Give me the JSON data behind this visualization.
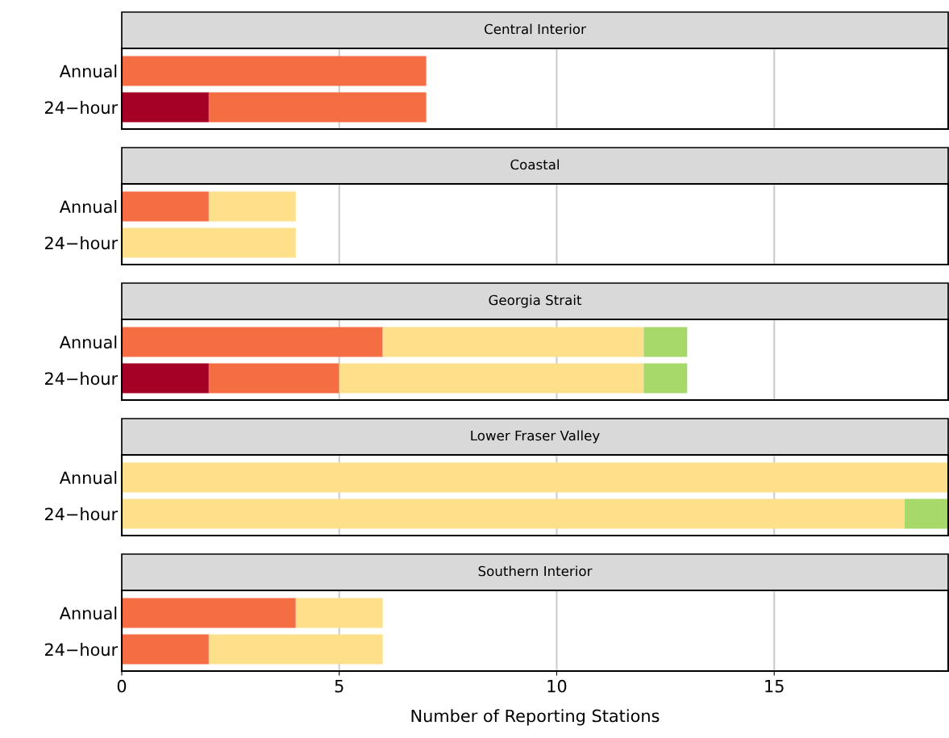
{
  "chart_data": [
    {
      "type": "bar",
      "orientation": "horizontal",
      "stacked": true,
      "title": "Central Interior",
      "categories": [
        "Annual",
        "24−hour"
      ],
      "xlim": [
        0,
        19
      ],
      "xticks": [
        0,
        5,
        10,
        15
      ],
      "grid": "x",
      "tick_labels": "y",
      "series": [
        {
          "color": "#a50026",
          "values": [
            null,
            2
          ]
        },
        {
          "color": "#f46d43",
          "values": [
            7,
            5
          ]
        }
      ]
    },
    {
      "type": "bar",
      "orientation": "horizontal",
      "stacked": true,
      "title": "Coastal",
      "categories": [
        "Annual",
        "24−hour"
      ],
      "xlim": [
        0,
        19
      ],
      "xticks": [
        0,
        5,
        10,
        15
      ],
      "grid": "x",
      "tick_labels": "y",
      "series": [
        {
          "color": "#f46d43",
          "values": [
            2,
            null
          ]
        },
        {
          "color": "#fee08b",
          "values": [
            2,
            4
          ]
        }
      ]
    },
    {
      "type": "bar",
      "orientation": "horizontal",
      "stacked": true,
      "title": "Georgia Strait",
      "categories": [
        "Annual",
        "24−hour"
      ],
      "xlim": [
        0,
        19
      ],
      "xticks": [
        0,
        5,
        10,
        15
      ],
      "grid": "x",
      "tick_labels": "y",
      "series": [
        {
          "color": "#a50026",
          "values": [
            null,
            2
          ]
        },
        {
          "color": "#f46d43",
          "values": [
            6,
            3
          ]
        },
        {
          "color": "#fee08b",
          "values": [
            6,
            7
          ]
        },
        {
          "color": "#a6d96a",
          "values": [
            1,
            1
          ]
        }
      ]
    },
    {
      "type": "bar",
      "orientation": "horizontal",
      "stacked": true,
      "title": "Lower Fraser Valley",
      "categories": [
        "Annual",
        "24−hour"
      ],
      "xlim": [
        0,
        19
      ],
      "xticks": [
        0,
        5,
        10,
        15
      ],
      "grid": "x",
      "tick_labels": "y",
      "series": [
        {
          "color": "#fee08b",
          "values": [
            19,
            18
          ]
        },
        {
          "color": "#a6d96a",
          "values": [
            null,
            1
          ]
        }
      ]
    },
    {
      "type": "bar",
      "orientation": "horizontal",
      "stacked": true,
      "title": "Southern Interior",
      "categories": [
        "Annual",
        "24−hour"
      ],
      "xlim": [
        0,
        19
      ],
      "xticks": [
        0,
        5,
        10,
        15
      ],
      "grid": "x",
      "xlabel": "Number of Reporting Stations",
      "series": [
        {
          "color": "#f46d43",
          "values": [
            4,
            2
          ]
        },
        {
          "color": "#fee08b",
          "values": [
            2,
            4
          ]
        }
      ]
    }
  ]
}
